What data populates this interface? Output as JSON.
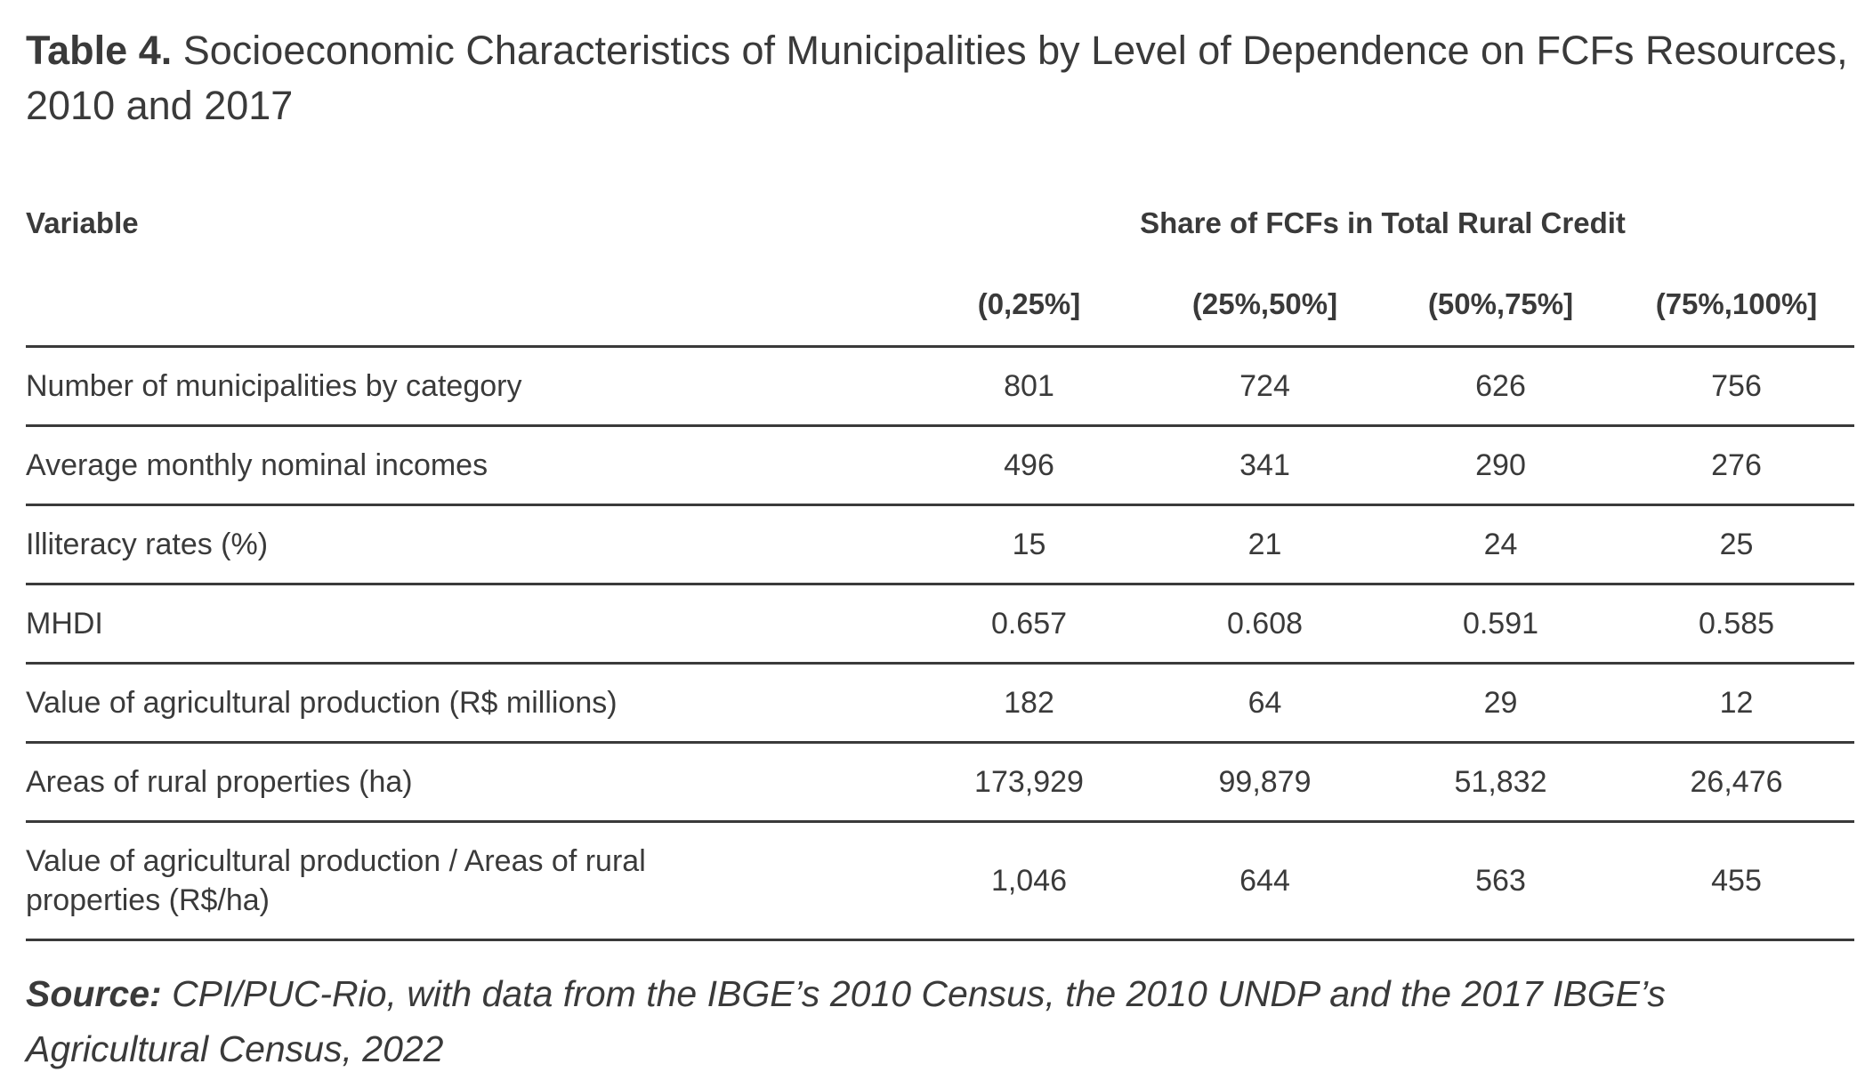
{
  "title": {
    "label": "Table 4.",
    "text": "Socioeconomic Characteristics of Municipalities by Level of Dependence on FCFs Resources, 2010 and 2017"
  },
  "table": {
    "variable_header": "Variable",
    "group_header": "Share of FCFs in Total Rural Credit",
    "columns": [
      "(0,25%]",
      "(25%,50%]",
      "(50%,75%]",
      "(75%,100%]"
    ],
    "rows": [
      {
        "variable": "Number of municipalities by category",
        "values": [
          "801",
          "724",
          "626",
          "756"
        ]
      },
      {
        "variable": "Average monthly nominal incomes",
        "values": [
          "496",
          "341",
          "290",
          "276"
        ]
      },
      {
        "variable": "Illiteracy rates (%)",
        "values": [
          "15",
          "21",
          "24",
          "25"
        ]
      },
      {
        "variable": "MHDI",
        "values": [
          "0.657",
          "0.608",
          "0.591",
          "0.585"
        ]
      },
      {
        "variable": "Value of agricultural production (R$ millions)",
        "values": [
          "182",
          "64",
          "29",
          "12"
        ]
      },
      {
        "variable": "Areas of rural properties (ha)",
        "values": [
          "173,929",
          "99,879",
          "51,832",
          "26,476"
        ]
      },
      {
        "variable": "Value of agricultural production / Areas of rural properties (R$/ha)",
        "values": [
          "1,046",
          "644",
          "563",
          "455"
        ]
      }
    ]
  },
  "source": {
    "label": "Source:",
    "text": "CPI/PUC-Rio, with data from the IBGE’s 2010 Census, the 2010 UNDP and the 2017 IBGE’s Agricultural Census, 2022"
  }
}
